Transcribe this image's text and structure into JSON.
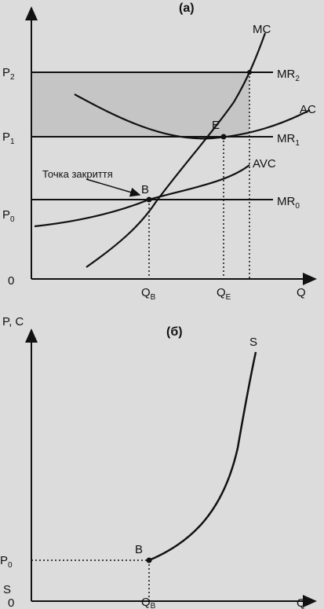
{
  "panel_a": {
    "tag": "(а)",
    "y_axis_ticks": {
      "p2": {
        "base": "P",
        "sub": "2"
      },
      "p1": {
        "base": "P",
        "sub": "1"
      },
      "p0": {
        "base": "P",
        "sub": "0"
      },
      "origin": "0"
    },
    "x_axis_label": "Q",
    "x_ticks": {
      "qb": {
        "base": "Q",
        "sub": "B"
      },
      "qe": {
        "base": "Q",
        "sub": "E"
      }
    },
    "curves": {
      "mc": "MC",
      "ac": "AC",
      "avc": "AVC",
      "mr2": {
        "base": "MR",
        "sub": "2"
      },
      "mr1": {
        "base": "MR",
        "sub": "1"
      },
      "mr0": {
        "base": "MR",
        "sub": "0"
      }
    },
    "points": {
      "e": "E",
      "b": "B"
    },
    "shutdown_label": "Точка закриття"
  },
  "panel_b": {
    "tag": "(б)",
    "y_axis_label": "P, C",
    "x_axis_label": "Q",
    "p0": {
      "base": "P",
      "sub": "0"
    },
    "origin": "0",
    "qb": {
      "base": "Q",
      "sub": "B"
    },
    "supply_label": "S",
    "point_b": "B",
    "s_left": "S"
  },
  "colors": {
    "ink": "#111111",
    "paper": "#dcdcdc",
    "shade": "#a9a9a9"
  }
}
